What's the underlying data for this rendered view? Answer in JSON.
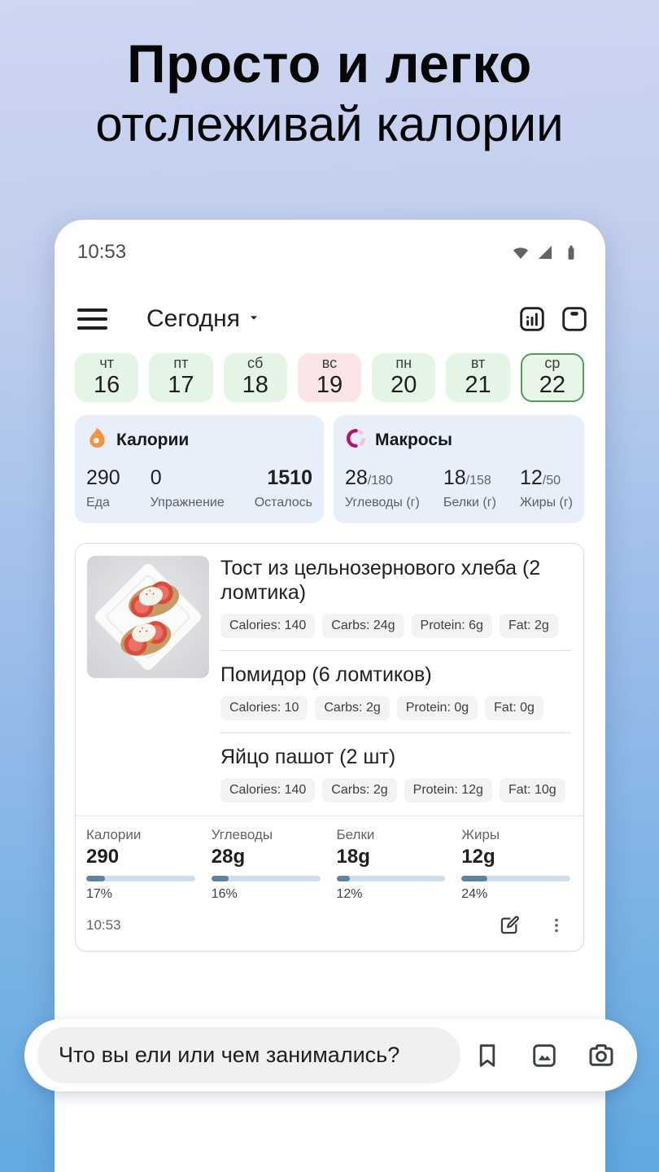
{
  "hero": {
    "line1": "Просто и легко",
    "line2": "отслеживай калории"
  },
  "phone": {
    "status_bar": {
      "time": "10:53"
    },
    "header": {
      "title": "Сегодня"
    },
    "week": {
      "days": [
        {
          "dow": "чт",
          "date": "16",
          "state": "logged"
        },
        {
          "dow": "пт",
          "date": "17",
          "state": "logged"
        },
        {
          "dow": "сб",
          "date": "18",
          "state": "logged"
        },
        {
          "dow": "вс",
          "date": "19",
          "state": "missed"
        },
        {
          "dow": "пн",
          "date": "20",
          "state": "logged"
        },
        {
          "dow": "вт",
          "date": "21",
          "state": "logged"
        },
        {
          "dow": "ср",
          "date": "22",
          "state": "selected"
        }
      ]
    },
    "calories_card": {
      "title": "Калории",
      "food_value": "290",
      "food_label": "Еда",
      "exercise_value": "0",
      "exercise_label": "Упражнение",
      "remaining_value": "1510",
      "remaining_label": "Осталось"
    },
    "macros_card": {
      "title": "Макросы",
      "items": [
        {
          "value": "28",
          "total": "/180",
          "label": "Углеводы (г)"
        },
        {
          "value": "18",
          "total": "/158",
          "label": "Белки (г)"
        },
        {
          "value": "12",
          "total": "/50",
          "label": "Жиры (г)"
        }
      ]
    },
    "meal_card": {
      "items": [
        {
          "name": "Тост из цельнозернового хлеба (2 ломтика)",
          "chips": [
            "Calories: 140",
            "Carbs: 24g",
            "Protein: 6g",
            "Fat: 2g"
          ]
        },
        {
          "name": "Помидор (6 ломтиков)",
          "chips": [
            "Calories: 10",
            "Carbs: 2g",
            "Protein: 0g",
            "Fat: 0g"
          ]
        },
        {
          "name": "Яйцо пашот (2 шт)",
          "chips": [
            "Calories: 140",
            "Carbs: 2g",
            "Protein: 12g",
            "Fat: 10g"
          ]
        }
      ],
      "summary": [
        {
          "label": "Калории",
          "value": "290",
          "percent": "17%",
          "pct": 17
        },
        {
          "label": "Углеводы",
          "value": "28g",
          "percent": "16%",
          "pct": 16
        },
        {
          "label": "Белки",
          "value": "18g",
          "percent": "12%",
          "pct": 12
        },
        {
          "label": "Жиры",
          "value": "12g",
          "percent": "24%",
          "pct": 24
        }
      ],
      "time": "10:53"
    }
  },
  "bottom_bar": {
    "placeholder": "Что вы ели или чем занимались?"
  },
  "icons": {
    "calories": "flame-icon",
    "macros": "macro-ring-icon",
    "header_left": "hamburger-menu-icon",
    "header_actions": [
      "stats-chart-icon",
      "weight-scale-icon"
    ],
    "meal_footer": [
      "edit-icon",
      "kebab-menu-icon"
    ],
    "bottom_bar": [
      "bookmark-icon",
      "gallery-icon",
      "camera-icon"
    ]
  },
  "colors": {
    "flame_orange": "#f5923e",
    "macro_ring_pink": "#b4156b",
    "day_logged_bg": "#e4f5e6",
    "day_missed_bg": "#fbe5e7",
    "day_selected_border": "#4f9e57",
    "summary_card_bg": "#e9eefb",
    "progress_fill": "#5e82a4",
    "progress_track": "#cfdded",
    "background_top": "#ced6f1",
    "background_bottom": "#5fa9e1"
  }
}
